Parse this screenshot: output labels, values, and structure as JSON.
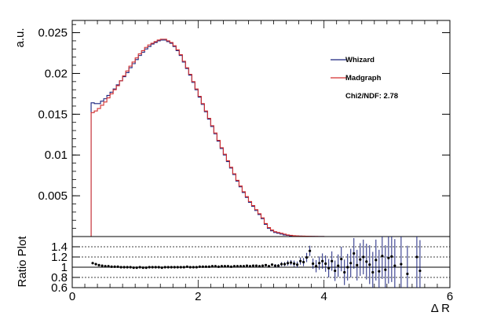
{
  "chart_data": [
    {
      "type": "line",
      "panel": "main",
      "step": true,
      "ylabel": "a.u.",
      "xlim": [
        0,
        6
      ],
      "ylim": [
        0,
        0.0265
      ],
      "yticks": [
        "0.005",
        "0.01",
        "0.015",
        "0.02",
        "0.025"
      ],
      "grid": false,
      "legend": {
        "position": "top-right",
        "entries": [
          "Whizard",
          "Madgraph"
        ]
      },
      "annotation": "Chi2/NDF: 2.78",
      "x_bin_centers": [
        0.325,
        0.375,
        0.425,
        0.475,
        0.525,
        0.575,
        0.625,
        0.675,
        0.725,
        0.775,
        0.825,
        0.875,
        0.925,
        0.975,
        1.025,
        1.075,
        1.125,
        1.175,
        1.225,
        1.275,
        1.325,
        1.375,
        1.425,
        1.475,
        1.525,
        1.575,
        1.625,
        1.675,
        1.725,
        1.775,
        1.825,
        1.875,
        1.925,
        1.975,
        2.025,
        2.075,
        2.125,
        2.175,
        2.225,
        2.275,
        2.325,
        2.375,
        2.425,
        2.475,
        2.525,
        2.575,
        2.625,
        2.675,
        2.725,
        2.775,
        2.825,
        2.875,
        2.925,
        2.975,
        3.025,
        3.075,
        3.125,
        3.175,
        3.225,
        3.275,
        3.325,
        3.375,
        3.425,
        3.475,
        3.525,
        3.575,
        3.625,
        3.675,
        3.725,
        3.775,
        3.825,
        3.875,
        3.925,
        3.975,
        4.025,
        4.075
      ],
      "series": [
        {
          "name": "Whizard",
          "color": "#1a237e",
          "values": [
            0.0164,
            0.0163,
            0.0163,
            0.0166,
            0.0169,
            0.0173,
            0.0177,
            0.0181,
            0.0186,
            0.0191,
            0.0196,
            0.0201,
            0.0207,
            0.0212,
            0.0217,
            0.0222,
            0.0226,
            0.023,
            0.0233,
            0.0236,
            0.0238,
            0.024,
            0.0241,
            0.0241,
            0.0239,
            0.0237,
            0.0233,
            0.0228,
            0.0222,
            0.0214,
            0.0206,
            0.0198,
            0.0189,
            0.018,
            0.0171,
            0.0162,
            0.0153,
            0.0144,
            0.0135,
            0.0126,
            0.0117,
            0.0108,
            0.01,
            0.0092,
            0.0084,
            0.0076,
            0.0068,
            0.0061,
            0.0054,
            0.0048,
            0.0042,
            0.0037,
            0.0032,
            0.0027,
            0.0022,
            0.0015,
            0.001,
            0.0007,
            0.0005,
            0.0004,
            0.0003,
            0.0002,
            0.00015,
            0.0001,
            8e-05,
            6e-05,
            5e-05,
            4e-05,
            3e-05,
            2e-05,
            2e-05,
            1e-05,
            1e-05,
            1e-05,
            0.0,
            0.0
          ]
        },
        {
          "name": "Madgraph",
          "color": "#d32f2f",
          "values": [
            0.0152,
            0.0154,
            0.0157,
            0.0161,
            0.0165,
            0.017,
            0.0175,
            0.018,
            0.0185,
            0.0191,
            0.0197,
            0.0203,
            0.0209,
            0.0214,
            0.0219,
            0.0224,
            0.0228,
            0.0232,
            0.0235,
            0.0237,
            0.0239,
            0.0241,
            0.0242,
            0.0242,
            0.024,
            0.0238,
            0.0234,
            0.0229,
            0.0223,
            0.0215,
            0.0207,
            0.0199,
            0.019,
            0.0181,
            0.0172,
            0.0163,
            0.0154,
            0.0145,
            0.0136,
            0.0127,
            0.0118,
            0.0109,
            0.0101,
            0.0093,
            0.0085,
            0.0077,
            0.0069,
            0.0062,
            0.0055,
            0.0049,
            0.0043,
            0.0038,
            0.0033,
            0.0028,
            0.0023,
            0.0016,
            0.0011,
            0.0008,
            0.0006,
            0.0005,
            0.0004,
            0.0003,
            0.0002,
            0.00015,
            0.0001,
            8e-05,
            6e-05,
            5e-05,
            4e-05,
            3e-05,
            2e-05,
            2e-05,
            1e-05,
            1e-05,
            0.0,
            0.0
          ]
        }
      ]
    },
    {
      "type": "scatter",
      "panel": "ratio",
      "ylabel": "Ratio Plot",
      "xlabel": "Δ R",
      "xlim": [
        0,
        6
      ],
      "ylim": [
        0.6,
        1.6
      ],
      "yticks": [
        "0.6",
        "0.8",
        "1",
        "1.2",
        "1.4"
      ],
      "xticks": [
        "0",
        "2",
        "4",
        "6"
      ],
      "reference_lines": [
        0.8,
        1.0,
        1.2,
        1.4
      ],
      "points": {
        "x": [
          0.325,
          0.375,
          0.425,
          0.475,
          0.525,
          0.575,
          0.625,
          0.675,
          0.725,
          0.775,
          0.825,
          0.875,
          0.925,
          0.975,
          1.025,
          1.075,
          1.125,
          1.175,
          1.225,
          1.275,
          1.325,
          1.375,
          1.425,
          1.475,
          1.525,
          1.575,
          1.625,
          1.675,
          1.725,
          1.775,
          1.825,
          1.875,
          1.925,
          1.975,
          2.025,
          2.075,
          2.125,
          2.175,
          2.225,
          2.275,
          2.325,
          2.375,
          2.425,
          2.475,
          2.525,
          2.575,
          2.625,
          2.675,
          2.725,
          2.775,
          2.825,
          2.875,
          2.925,
          2.975,
          3.025,
          3.075,
          3.125,
          3.175,
          3.225,
          3.275,
          3.325,
          3.375,
          3.425,
          3.475,
          3.525,
          3.575,
          3.625,
          3.675,
          3.725,
          3.775,
          3.825,
          3.875,
          3.925,
          3.975,
          4.025,
          4.075,
          4.125,
          4.175,
          4.225,
          4.275,
          4.325,
          4.375,
          4.425,
          4.475,
          4.525,
          4.575,
          4.625,
          4.675,
          4.725,
          4.775,
          4.825,
          4.875,
          4.925,
          4.975,
          5.025,
          5.075,
          5.125,
          5.225,
          5.325,
          5.475,
          5.525
        ],
        "y": [
          1.08,
          1.06,
          1.04,
          1.03,
          1.02,
          1.02,
          1.01,
          1.01,
          1.01,
          1.0,
          1.0,
          1.0,
          1.0,
          0.99,
          0.99,
          1.0,
          0.99,
          0.99,
          1.0,
          1.0,
          1.0,
          1.0,
          0.99,
          1.0,
          1.0,
          1.0,
          1.0,
          1.0,
          1.0,
          1.0,
          1.01,
          1.0,
          1.0,
          1.0,
          1.01,
          1.01,
          1.01,
          1.01,
          1.02,
          1.02,
          1.01,
          1.02,
          1.02,
          1.02,
          1.01,
          1.02,
          1.02,
          1.02,
          1.02,
          1.03,
          1.02,
          1.03,
          1.03,
          1.02,
          1.03,
          1.04,
          1.02,
          1.05,
          1.03,
          1.03,
          1.06,
          1.06,
          1.08,
          1.09,
          1.07,
          1.05,
          1.12,
          1.1,
          1.19,
          1.32,
          1.07,
          1.02,
          1.08,
          1.12,
          1.07,
          0.98,
          1.12,
          0.93,
          1.03,
          1.16,
          0.9,
          1.0,
          1.08,
          1.27,
          1.04,
          1.15,
          1.2,
          1.11,
          1.05,
          0.9,
          1.14,
          0.92,
          1.22,
          0.95,
          1.18,
          1.21,
          1.03,
          1.06,
          0.87,
          1.2,
          0.93
        ],
        "err": [
          0.02,
          0.01,
          0.01,
          0.01,
          0.01,
          0.01,
          0.01,
          0.01,
          0.01,
          0.01,
          0.01,
          0.01,
          0.01,
          0.01,
          0.01,
          0.01,
          0.01,
          0.01,
          0.01,
          0.01,
          0.01,
          0.01,
          0.01,
          0.01,
          0.01,
          0.01,
          0.01,
          0.01,
          0.01,
          0.01,
          0.01,
          0.01,
          0.01,
          0.01,
          0.01,
          0.01,
          0.01,
          0.01,
          0.01,
          0.01,
          0.01,
          0.01,
          0.01,
          0.01,
          0.01,
          0.01,
          0.01,
          0.01,
          0.01,
          0.01,
          0.01,
          0.01,
          0.01,
          0.01,
          0.02,
          0.02,
          0.02,
          0.02,
          0.03,
          0.03,
          0.04,
          0.04,
          0.05,
          0.05,
          0.06,
          0.06,
          0.07,
          0.08,
          0.09,
          0.1,
          0.1,
          0.12,
          0.13,
          0.15,
          0.16,
          0.18,
          0.19,
          0.2,
          0.22,
          0.24,
          0.25,
          0.26,
          0.28,
          0.3,
          0.3,
          0.32,
          0.34,
          0.35,
          0.38,
          0.4,
          0.4,
          0.42,
          0.45,
          0.48,
          0.5,
          0.5,
          0.52,
          0.55,
          0.55,
          0.6,
          0.6
        ]
      }
    }
  ]
}
